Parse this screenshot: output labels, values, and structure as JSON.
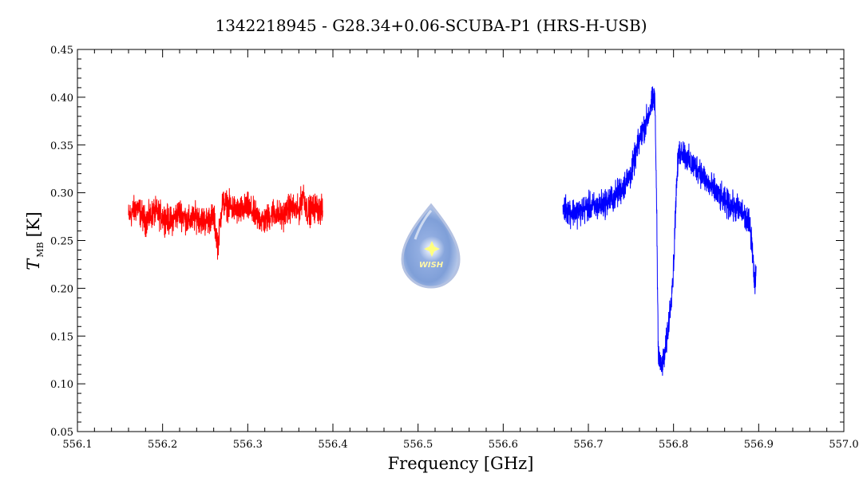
{
  "chart_data": {
    "type": "line",
    "title": "1342218945 - G28.34+0.06-SCUBA-P1 (HRS-H-USB)",
    "xlabel": "Frequency [GHz]",
    "ylabel_main": "T",
    "ylabel_sub": "MB",
    "ylabel_unit": "[K]",
    "xlim": [
      556.1,
      557.0
    ],
    "ylim": [
      0.05,
      0.45
    ],
    "xticks": [
      "556.1",
      "556.2",
      "556.3",
      "556.4",
      "556.5",
      "556.6",
      "556.7",
      "556.8",
      "556.9",
      "557.0"
    ],
    "yticks": [
      "0.05",
      "0.10",
      "0.15",
      "0.20",
      "0.25",
      "0.30",
      "0.35",
      "0.40",
      "0.45"
    ],
    "grid": false,
    "series": [
      {
        "color": "#ff0000",
        "x": [
          556.16,
          556.17,
          556.18,
          556.19,
          556.2,
          556.21,
          556.22,
          556.23,
          556.24,
          556.25,
          556.26,
          556.265,
          556.27,
          556.28,
          556.29,
          556.3,
          556.31,
          556.32,
          556.33,
          556.34,
          556.35,
          556.36,
          556.365,
          556.37,
          556.38,
          556.388
        ],
        "y": [
          0.275,
          0.285,
          0.27,
          0.28,
          0.275,
          0.27,
          0.28,
          0.27,
          0.275,
          0.27,
          0.275,
          0.245,
          0.29,
          0.285,
          0.28,
          0.285,
          0.275,
          0.27,
          0.28,
          0.275,
          0.285,
          0.28,
          0.3,
          0.28,
          0.285,
          0.28
        ]
      },
      {
        "color": "#0000ff",
        "x": [
          556.67,
          556.68,
          556.69,
          556.7,
          556.71,
          556.72,
          556.73,
          556.74,
          556.75,
          556.76,
          556.77,
          556.775,
          556.778,
          556.78,
          556.782,
          556.785,
          556.79,
          556.795,
          556.8,
          556.803,
          556.806,
          556.81,
          556.82,
          556.83,
          556.84,
          556.85,
          556.86,
          556.87,
          556.88,
          556.89,
          556.893,
          556.895,
          556.897
        ],
        "y": [
          0.285,
          0.28,
          0.28,
          0.285,
          0.285,
          0.29,
          0.295,
          0.305,
          0.32,
          0.355,
          0.38,
          0.395,
          0.4,
          0.3,
          0.14,
          0.115,
          0.13,
          0.17,
          0.22,
          0.3,
          0.34,
          0.345,
          0.33,
          0.325,
          0.31,
          0.3,
          0.29,
          0.285,
          0.28,
          0.265,
          0.24,
          0.2,
          0.22
        ]
      }
    ]
  },
  "logo": {
    "text": "WISH"
  }
}
